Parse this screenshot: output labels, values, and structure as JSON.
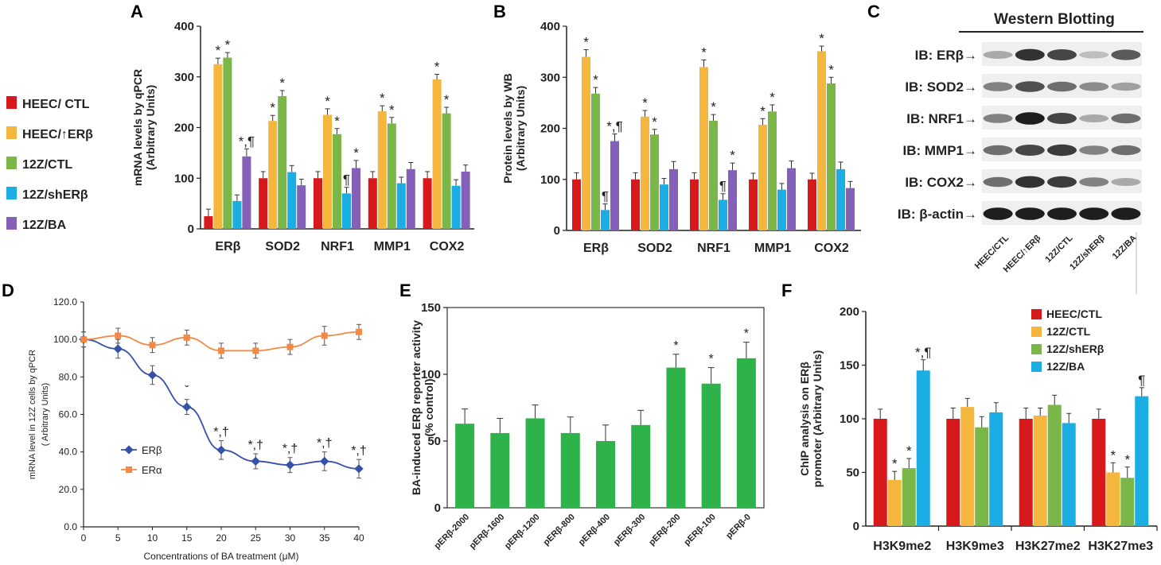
{
  "panels": {
    "A": "A",
    "B": "B",
    "C": "C",
    "D": "D",
    "E": "E",
    "F": "F"
  },
  "colors": {
    "red": "#d7191c",
    "orange": "#f4b63c",
    "green": "#7ab648",
    "blue": "#1aaee4",
    "purple": "#8460b8",
    "dgreen": "#2db34a",
    "line_blue": "#3651a8",
    "line_orange": "#f28a46"
  },
  "legend_left": {
    "items": [
      {
        "label": "HEEC/ CTL",
        "color": "#d7191c"
      },
      {
        "label": "HEEC/↑ERβ",
        "color": "#f4b63c"
      },
      {
        "label": "12Z/CTL",
        "color": "#7ab648"
      },
      {
        "label": "12Z/shERβ",
        "color": "#1aaee4"
      },
      {
        "label": "12Z/BA",
        "color": "#8460b8"
      }
    ]
  },
  "chart_data": [
    {
      "id": "A",
      "type": "bar",
      "ylabel_line1": "mRNA levels by qPCR",
      "ylabel_line2": "(Arbitrary Units)",
      "ylim": [
        0,
        400
      ],
      "yticks": [
        "0",
        "100",
        "200",
        "300",
        "400"
      ],
      "categories": [
        "ERβ",
        "SOD2",
        "NRF1",
        "MMP1",
        "COX2"
      ],
      "series": [
        {
          "name": "HEEC/ CTL",
          "values": [
            25,
            100,
            100,
            100,
            100
          ],
          "errors": [
            14,
            13,
            13,
            13,
            13
          ]
        },
        {
          "name": "HEEC/↑ERβ",
          "values": [
            325,
            213,
            225,
            232,
            295
          ],
          "errors": [
            12,
            11,
            12,
            11,
            10
          ]
        },
        {
          "name": "12Z/CTL",
          "values": [
            338,
            262,
            187,
            208,
            228
          ],
          "errors": [
            10,
            11,
            11,
            12,
            12
          ]
        },
        {
          "name": "12Z/shERβ",
          "values": [
            55,
            112,
            70,
            90,
            85
          ],
          "errors": [
            12,
            13,
            12,
            12,
            12
          ]
        },
        {
          "name": "12Z/BA",
          "values": [
            143,
            86,
            120,
            118,
            113
          ],
          "errors": [
            15,
            12,
            15,
            13,
            13
          ]
        }
      ],
      "annotations": [
        {
          "cat": 0,
          "series": 1,
          "text": "*"
        },
        {
          "cat": 0,
          "series": 2,
          "text": "*"
        },
        {
          "cat": 0,
          "series": 4,
          "text": "*,¶"
        },
        {
          "cat": 1,
          "series": 1,
          "text": "*"
        },
        {
          "cat": 1,
          "series": 2,
          "text": "*"
        },
        {
          "cat": 2,
          "series": 1,
          "text": "*"
        },
        {
          "cat": 2,
          "series": 2,
          "text": "*"
        },
        {
          "cat": 2,
          "series": 3,
          "text": "¶"
        },
        {
          "cat": 2,
          "series": 4,
          "text": "*"
        },
        {
          "cat": 3,
          "series": 1,
          "text": "*"
        },
        {
          "cat": 3,
          "series": 2,
          "text": "*"
        },
        {
          "cat": 4,
          "series": 1,
          "text": "*"
        },
        {
          "cat": 4,
          "series": 2,
          "text": "*"
        }
      ]
    },
    {
      "id": "B",
      "type": "bar",
      "ylabel_line1": "Protein levels by WB",
      "ylabel_line2": "(Arbitrary Units)",
      "ylim": [
        0,
        400
      ],
      "yticks": [
        "0",
        "100",
        "200",
        "300",
        "400"
      ],
      "categories": [
        "ERβ",
        "SOD2",
        "NRF1",
        "MMP1",
        "COX2"
      ],
      "series": [
        {
          "name": "HEEC/ CTL",
          "values": [
            100,
            100,
            100,
            100,
            100
          ],
          "errors": [
            13,
            13,
            13,
            12,
            12
          ]
        },
        {
          "name": "HEEC/↑ERβ",
          "values": [
            340,
            223,
            320,
            207,
            351
          ],
          "errors": [
            14,
            12,
            14,
            12,
            10
          ]
        },
        {
          "name": "12Z/CTL",
          "values": [
            268,
            188,
            215,
            233,
            288
          ],
          "errors": [
            12,
            10,
            12,
            13,
            12
          ]
        },
        {
          "name": "12Z/shERβ",
          "values": [
            40,
            90,
            60,
            80,
            120
          ],
          "errors": [
            12,
            12,
            12,
            12,
            14
          ]
        },
        {
          "name": "12Z/BA",
          "values": [
            175,
            120,
            118,
            122,
            83
          ],
          "errors": [
            14,
            15,
            14,
            14,
            13
          ]
        }
      ],
      "annotations": [
        {
          "cat": 0,
          "series": 1,
          "text": "*"
        },
        {
          "cat": 0,
          "series": 2,
          "text": "*"
        },
        {
          "cat": 0,
          "series": 3,
          "text": "¶"
        },
        {
          "cat": 0,
          "series": 4,
          "text": "*,¶"
        },
        {
          "cat": 1,
          "series": 1,
          "text": "*"
        },
        {
          "cat": 1,
          "series": 2,
          "text": "*"
        },
        {
          "cat": 2,
          "series": 1,
          "text": "*"
        },
        {
          "cat": 2,
          "series": 2,
          "text": "*"
        },
        {
          "cat": 2,
          "series": 3,
          "text": "¶"
        },
        {
          "cat": 2,
          "series": 4,
          "text": "*"
        },
        {
          "cat": 3,
          "series": 1,
          "text": "*"
        },
        {
          "cat": 3,
          "series": 2,
          "text": "*"
        },
        {
          "cat": 4,
          "series": 1,
          "text": "*"
        },
        {
          "cat": 4,
          "series": 2,
          "text": "*"
        }
      ]
    },
    {
      "id": "D",
      "type": "line",
      "xlabel": "Concentrations of BA treatment (μM)",
      "ylabel_line1": "mRNA level in 12Z cells by qPCR",
      "ylabel_line2": "( Arbitrary Units)",
      "x": [
        0,
        5,
        10,
        15,
        20,
        25,
        30,
        35,
        40
      ],
      "xticks": [
        "0",
        "5",
        "10",
        "15",
        "20",
        "25",
        "30",
        "35",
        "40"
      ],
      "ylim": [
        0,
        120
      ],
      "yticks": [
        "0.0",
        "20.0",
        "40.0",
        "60.0",
        "80.0",
        "100.0",
        "120.0"
      ],
      "series": [
        {
          "name": "ERβ",
          "values": [
            100,
            95,
            81,
            64,
            41,
            35,
            33,
            35,
            31
          ],
          "errors": [
            4,
            5,
            5,
            4,
            5,
            4,
            4,
            5,
            5
          ]
        },
        {
          "name": "ERα",
          "values": [
            100,
            102,
            97,
            101,
            94,
            94,
            96,
            102,
            104
          ],
          "errors": [
            4,
            4,
            4,
            4,
            4,
            4,
            4,
            5,
            4
          ]
        }
      ],
      "annotations": [
        {
          "x": 15,
          "text": "ˇ"
        },
        {
          "x": 20,
          "text": "*,†"
        },
        {
          "x": 25,
          "text": "*,†"
        },
        {
          "x": 30,
          "text": "*,†"
        },
        {
          "x": 35,
          "text": "*,†"
        },
        {
          "x": 40,
          "text": "*,†"
        }
      ]
    },
    {
      "id": "E",
      "type": "bar",
      "ylabel_line1": "BA-induced ERβ reporter activity",
      "ylabel_line2": "(% control)",
      "ylim": [
        0,
        150
      ],
      "yticks": [
        "0",
        "50",
        "100",
        "150"
      ],
      "categories": [
        "pERβ-2000",
        "pERβ-1600",
        "pERβ-1200",
        "pERβ-800",
        "pERβ-400",
        "pERβ-300",
        "pERβ-200",
        "pERβ-100",
        "pERβ-0"
      ],
      "values": [
        63,
        56,
        67,
        56,
        50,
        62,
        105,
        93,
        112
      ],
      "errors": [
        11,
        11,
        10,
        12,
        12,
        11,
        10,
        12,
        12
      ],
      "annotations": [
        {
          "cat": 6,
          "text": "*"
        },
        {
          "cat": 7,
          "text": "*"
        },
        {
          "cat": 8,
          "text": "*"
        }
      ]
    },
    {
      "id": "F",
      "type": "bar",
      "ylabel_line1": "ChIP analysis on ERβ",
      "ylabel_line2": "promoter (Arbitrary Units)",
      "ylim": [
        0,
        200
      ],
      "yticks": [
        "0",
        "50",
        "100",
        "150",
        "200"
      ],
      "categories": [
        "H3K9me2",
        "H3K9me3",
        "H3K27me2",
        "H3K27me3"
      ],
      "series": [
        {
          "name": "HEEC/CTL",
          "values": [
            100,
            100,
            100,
            100
          ],
          "errors": [
            9,
            10,
            10,
            9
          ]
        },
        {
          "name": "12Z/CTL",
          "values": [
            43,
            111,
            103,
            50
          ],
          "errors": [
            8,
            8,
            7,
            9
          ]
        },
        {
          "name": "12Z/shERβ",
          "values": [
            54,
            92,
            113,
            45
          ],
          "errors": [
            9,
            10,
            9,
            10
          ]
        },
        {
          "name": "12Z/BA",
          "values": [
            145,
            106,
            96,
            121
          ],
          "errors": [
            10,
            9,
            9,
            8
          ]
        }
      ],
      "legend": [
        "HEEC/CTL",
        "12Z/CTL",
        "12Z/shERβ",
        "12Z/BA"
      ],
      "annotations": [
        {
          "cat": 0,
          "series": 1,
          "text": "*"
        },
        {
          "cat": 0,
          "series": 2,
          "text": "*"
        },
        {
          "cat": 0,
          "series": 3,
          "text": "*,¶"
        },
        {
          "cat": 3,
          "series": 1,
          "text": "*"
        },
        {
          "cat": 3,
          "series": 2,
          "text": "*"
        },
        {
          "cat": 3,
          "series": 3,
          "text": "¶"
        }
      ]
    }
  ],
  "western": {
    "title": "Western Blotting",
    "rows": [
      {
        "label": "IB: ERβ→",
        "intensity": [
          0.25,
          0.85,
          0.75,
          0.15,
          0.65
        ]
      },
      {
        "label": "IB: SOD2→",
        "intensity": [
          0.45,
          0.7,
          0.55,
          0.4,
          0.3
        ]
      },
      {
        "label": "IB: NRF1→",
        "intensity": [
          0.45,
          0.95,
          0.75,
          0.25,
          0.55
        ]
      },
      {
        "label": "IB: MMP1→",
        "intensity": [
          0.55,
          0.75,
          0.8,
          0.45,
          0.55
        ]
      },
      {
        "label": "IB: COX2→",
        "intensity": [
          0.55,
          0.85,
          0.8,
          0.45,
          0.25
        ]
      },
      {
        "label": "IB: β-actin→",
        "intensity": [
          0.95,
          0.95,
          0.95,
          0.95,
          0.95
        ]
      }
    ],
    "lanes": [
      "HEEC/CTL",
      "HEEC/↑ERβ",
      "12Z/CTL",
      "12Z/shERβ",
      "12Z/BA"
    ]
  }
}
